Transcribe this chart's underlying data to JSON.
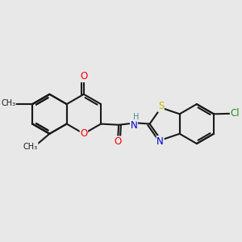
{
  "bg_color": "#e8e8e8",
  "bond_color": "#1a1a1a",
  "bond_lw": 1.5,
  "dbo": 0.055,
  "atom_colors": {
    "O": "#ff0000",
    "N": "#0000cc",
    "S": "#b8b800",
    "Cl": "#228B22",
    "C": "#1a1a1a",
    "H": "#4a9090"
  },
  "afs": 8.5
}
